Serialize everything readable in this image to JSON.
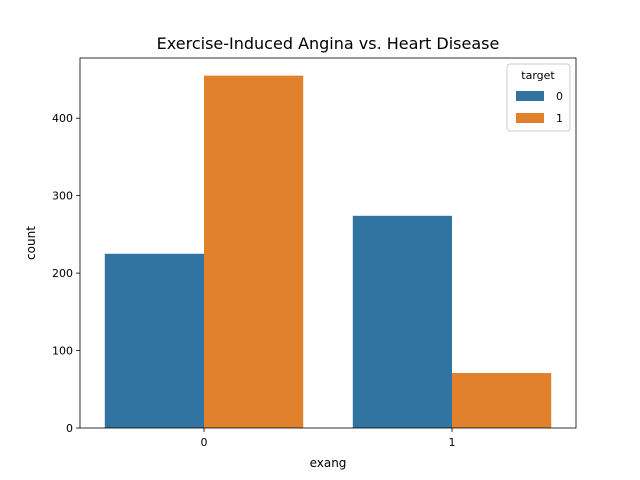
{
  "chart_data": {
    "type": "bar",
    "title": "Exercise-Induced Angina vs. Heart Disease",
    "xlabel": "exang",
    "ylabel": "count",
    "categories": [
      "0",
      "1"
    ],
    "series": [
      {
        "name": "0",
        "values": [
          225,
          274
        ],
        "color": "#3274a1"
      },
      {
        "name": "1",
        "values": [
          455,
          71
        ],
        "color": "#e1812c"
      }
    ],
    "yticks": [
      0,
      100,
      200,
      300,
      400
    ],
    "ylim": [
      0,
      477.75
    ],
    "grid": false,
    "legend": {
      "title": "target",
      "placement": "top-right"
    }
  }
}
